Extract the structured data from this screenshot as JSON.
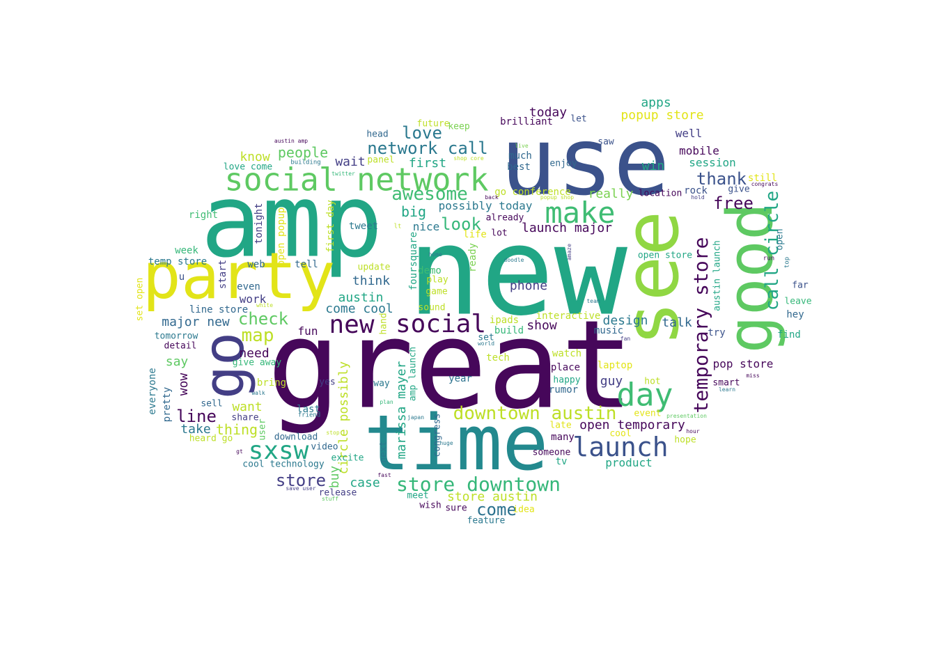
{
  "words": [
    {
      "text": "great",
      "color": "#46075a"
    },
    {
      "text": "new",
      "color": "#21a685"
    },
    {
      "text": "amp",
      "color": "#21a685"
    },
    {
      "text": "use",
      "color": "#3b528b"
    },
    {
      "text": "see",
      "color": "#90d743"
    },
    {
      "text": "time",
      "color": "#23898e"
    },
    {
      "text": "party",
      "color": "#e2e418"
    },
    {
      "text": "go",
      "color": "#433e85"
    },
    {
      "text": "good",
      "color": "#5ec962"
    },
    {
      "text": "social network",
      "color": "#5ec962"
    },
    {
      "text": "make",
      "color": "#3fbc73"
    },
    {
      "text": "launch",
      "color": "#3b528b"
    },
    {
      "text": "day",
      "color": "#3fbc73"
    },
    {
      "text": "new",
      "color": "#46075a"
    },
    {
      "text": "social",
      "color": "#46075a"
    },
    {
      "text": "sxsw",
      "color": "#21a685"
    },
    {
      "text": "store downtown",
      "color": "#35b779"
    },
    {
      "text": "temporary store",
      "color": "#46075a"
    },
    {
      "text": "downtown austin",
      "color": "#bddf26"
    },
    {
      "text": "call circle",
      "color": "#21a685"
    },
    {
      "text": "network call",
      "color": "#2a788e"
    },
    {
      "text": "awesome",
      "color": "#3fbc73"
    },
    {
      "text": "come",
      "color": "#2c728e"
    },
    {
      "text": "store",
      "color": "#433e85"
    },
    {
      "text": "line",
      "color": "#46075a"
    },
    {
      "text": "map",
      "color": "#bddf26"
    },
    {
      "text": "love",
      "color": "#2a788e"
    },
    {
      "text": "look",
      "color": "#35b779"
    },
    {
      "text": "check",
      "color": "#5ec962"
    },
    {
      "text": "thank",
      "color": "#3b528b"
    },
    {
      "text": "free",
      "color": "#46075a"
    },
    {
      "text": "popup store",
      "color": "#e2e418"
    },
    {
      "text": "apps",
      "color": "#21a685"
    },
    {
      "text": "today",
      "color": "#46075a"
    },
    {
      "text": "store austin",
      "color": "#bddf26"
    },
    {
      "text": "launch major",
      "color": "#46075a"
    },
    {
      "text": "open temporary",
      "color": "#46075a"
    },
    {
      "text": "marissa mayer",
      "color": "#21a685"
    },
    {
      "text": "possibly today",
      "color": "#2a788e"
    },
    {
      "text": "thing",
      "color": "#bddf26"
    },
    {
      "text": "people",
      "color": "#5ec962"
    },
    {
      "text": "first",
      "color": "#21a685"
    },
    {
      "text": "austin",
      "color": "#21a685"
    },
    {
      "text": "wait",
      "color": "#433e85"
    },
    {
      "text": "well",
      "color": "#433e85"
    },
    {
      "text": "mobile",
      "color": "#46075a"
    },
    {
      "text": "session",
      "color": "#21a685"
    },
    {
      "text": "win",
      "color": "#21a685"
    },
    {
      "text": "really",
      "color": "#7ad151"
    },
    {
      "text": "big",
      "color": "#21a685"
    },
    {
      "text": "know",
      "color": "#bddf26"
    },
    {
      "text": "circle possibly",
      "color": "#bddf26"
    },
    {
      "text": "pop store",
      "color": "#46075a"
    },
    {
      "text": "design",
      "color": "#2a788e"
    },
    {
      "text": "phone",
      "color": "#433e85"
    },
    {
      "text": "product",
      "color": "#21a685"
    },
    {
      "text": "major new",
      "color": "#31688e"
    },
    {
      "text": "come cool",
      "color": "#2a788e"
    },
    {
      "text": "want",
      "color": "#bddf26"
    },
    {
      "text": "need",
      "color": "#46075a"
    },
    {
      "text": "say",
      "color": "#5ec962"
    },
    {
      "text": "take",
      "color": "#2a788e"
    },
    {
      "text": "talk",
      "color": "#31688e"
    },
    {
      "text": "show",
      "color": "#46075a"
    },
    {
      "text": "case",
      "color": "#21a685"
    },
    {
      "text": "guy",
      "color": "#433e85"
    },
    {
      "text": "fun",
      "color": "#46075a"
    },
    {
      "text": "think",
      "color": "#31688e"
    },
    {
      "text": "work",
      "color": "#433e85"
    },
    {
      "text": "nice",
      "color": "#2a788e"
    },
    {
      "text": "wow",
      "color": "#46075a"
    },
    {
      "text": "buy",
      "color": "#5ec962"
    },
    {
      "text": "tweet",
      "color": "#2a788e"
    },
    {
      "text": "tonight",
      "color": "#433e85"
    },
    {
      "text": "first day",
      "color": "#bddf26"
    },
    {
      "text": "open popup",
      "color": "#e2e418"
    },
    {
      "text": "temp store",
      "color": "#2a788e"
    },
    {
      "text": "line store",
      "color": "#31688e"
    },
    {
      "text": "love come",
      "color": "#21a685"
    },
    {
      "text": "foursquare",
      "color": "#21a685"
    },
    {
      "text": "brilliant",
      "color": "#46075a"
    },
    {
      "text": "future",
      "color": "#bddf26"
    },
    {
      "text": "keep",
      "color": "#7ad151"
    },
    {
      "text": "head",
      "color": "#31688e"
    },
    {
      "text": "panel",
      "color": "#bddf26"
    },
    {
      "text": "much",
      "color": "#31688e"
    },
    {
      "text": "best",
      "color": "#31688e"
    },
    {
      "text": "enjoy",
      "color": "#31688e"
    },
    {
      "text": "saw",
      "color": "#3b528b"
    },
    {
      "text": "let",
      "color": "#3b528b"
    },
    {
      "text": "go conference",
      "color": "#bddf26"
    },
    {
      "text": "location",
      "color": "#46075a"
    },
    {
      "text": "rock",
      "color": "#3b528b"
    },
    {
      "text": "give",
      "color": "#3b528b"
    },
    {
      "text": "still",
      "color": "#e2e418"
    },
    {
      "text": "already",
      "color": "#46075a"
    },
    {
      "text": "lot",
      "color": "#46075a"
    },
    {
      "text": "life",
      "color": "#e2e418"
    },
    {
      "text": "ready",
      "color": "#7ad151"
    },
    {
      "text": "right",
      "color": "#3fbc73"
    },
    {
      "text": "week",
      "color": "#35b779"
    },
    {
      "text": "web",
      "color": "#31688e"
    },
    {
      "text": "tell",
      "color": "#31688e"
    },
    {
      "text": "start",
      "color": "#433e85"
    },
    {
      "text": "update",
      "color": "#bddf26"
    },
    {
      "text": "demo",
      "color": "#3fbc73"
    },
    {
      "text": "play",
      "color": "#bddf26"
    },
    {
      "text": "game",
      "color": "#bddf26"
    },
    {
      "text": "sound",
      "color": "#bddf26"
    },
    {
      "text": "even",
      "color": "#31688e"
    },
    {
      "text": "u",
      "color": "#3b528b"
    },
    {
      "text": "set open",
      "color": "#e2e418"
    },
    {
      "text": "open store",
      "color": "#21a685"
    },
    {
      "text": "austin launch",
      "color": "#21a685"
    },
    {
      "text": "open",
      "color": "#2a788e"
    },
    {
      "text": "rumor",
      "color": "#31688e"
    },
    {
      "text": "far",
      "color": "#3b528b"
    },
    {
      "text": "leave",
      "color": "#35b779"
    },
    {
      "text": "hey",
      "color": "#31688e"
    },
    {
      "text": "find",
      "color": "#21a685"
    },
    {
      "text": "try",
      "color": "#3b528b"
    },
    {
      "text": "interactive",
      "color": "#bddf26"
    },
    {
      "text": "ipads",
      "color": "#bddf26"
    },
    {
      "text": "build",
      "color": "#35b779"
    },
    {
      "text": "music",
      "color": "#31688e"
    },
    {
      "text": "watch",
      "color": "#bddf26"
    },
    {
      "text": "laptop",
      "color": "#e2e418"
    },
    {
      "text": "tech",
      "color": "#bddf26"
    },
    {
      "text": "set",
      "color": "#2a788e"
    },
    {
      "text": "place",
      "color": "#46075a"
    },
    {
      "text": "happy",
      "color": "#21a685"
    },
    {
      "text": "year",
      "color": "#2c728e"
    },
    {
      "text": "hot",
      "color": "#bddf26"
    },
    {
      "text": "smart",
      "color": "#46075a"
    },
    {
      "text": "event",
      "color": "#e2e418"
    },
    {
      "text": "cool",
      "color": "#e2e418"
    },
    {
      "text": "hope",
      "color": "#bddf26"
    },
    {
      "text": "late",
      "color": "#e2e418"
    },
    {
      "text": "many",
      "color": "#46075a"
    },
    {
      "text": "someone",
      "color": "#46075a"
    },
    {
      "text": "tv",
      "color": "#21a685"
    },
    {
      "text": "tomorrow",
      "color": "#2a788e"
    },
    {
      "text": "detail",
      "color": "#46075a"
    },
    {
      "text": "give away",
      "color": "#35b779"
    },
    {
      "text": "everyone",
      "color": "#2a788e"
    },
    {
      "text": "pretty",
      "color": "#31688e"
    },
    {
      "text": "bring",
      "color": "#bddf26"
    },
    {
      "text": "sell",
      "color": "#31688e"
    },
    {
      "text": "share",
      "color": "#433e85"
    },
    {
      "text": "user",
      "color": "#5ec962"
    },
    {
      "text": "heard go",
      "color": "#bddf26"
    },
    {
      "text": "download",
      "color": "#31688e"
    },
    {
      "text": "video",
      "color": "#31688e"
    },
    {
      "text": "excite",
      "color": "#21a685"
    },
    {
      "text": "cool technology",
      "color": "#2a788e"
    },
    {
      "text": "yes",
      "color": "#433e85"
    },
    {
      "text": "last",
      "color": "#2a788e"
    },
    {
      "text": "way",
      "color": "#2a788e"
    },
    {
      "text": "next",
      "color": "#2a788e"
    },
    {
      "text": "amp launch",
      "color": "#21a685"
    },
    {
      "text": "congress",
      "color": "#31688e"
    },
    {
      "text": "hand",
      "color": "#bddf26"
    },
    {
      "text": "release",
      "color": "#433e85"
    },
    {
      "text": "meet",
      "color": "#21a685"
    },
    {
      "text": "wish",
      "color": "#46075a"
    },
    {
      "text": "sure",
      "color": "#46075a"
    },
    {
      "text": "idea",
      "color": "#e2e418"
    },
    {
      "text": "feature",
      "color": "#2a788e"
    },
    {
      "text": "austin amp",
      "color": "#46075a"
    },
    {
      "text": "building",
      "color": "#2a788e"
    },
    {
      "text": "twitter",
      "color": "#35b779"
    },
    {
      "text": "live",
      "color": "#7ad151"
    },
    {
      "text": "shop core",
      "color": "#bddf26"
    },
    {
      "text": "back",
      "color": "#46075a"
    },
    {
      "text": "popup shop",
      "color": "#bddf26"
    },
    {
      "text": "lt",
      "color": "#bddf26"
    },
    {
      "text": "home",
      "color": "#2a788e"
    },
    {
      "text": "doodle",
      "color": "#2a788e"
    },
    {
      "text": "amaze",
      "color": "#433e85"
    },
    {
      "text": "run",
      "color": "#46075a"
    },
    {
      "text": "top",
      "color": "#2a788e"
    },
    {
      "text": "hold",
      "color": "#433e85"
    },
    {
      "text": "congrats",
      "color": "#46075a"
    },
    {
      "text": "white",
      "color": "#bddf26"
    },
    {
      "text": "team",
      "color": "#2a788e"
    },
    {
      "text": "fan",
      "color": "#433e85"
    },
    {
      "text": "miss",
      "color": "#46075a"
    },
    {
      "text": "learn",
      "color": "#2a788e"
    },
    {
      "text": "world",
      "color": "#2a788e"
    },
    {
      "text": "walk",
      "color": "#2a788e"
    },
    {
      "text": "plan",
      "color": "#35b779"
    },
    {
      "text": "friend",
      "color": "#2a788e"
    },
    {
      "text": "japan",
      "color": "#2a788e"
    },
    {
      "text": "stop",
      "color": "#bddf26"
    },
    {
      "text": "huge",
      "color": "#2a788e"
    },
    {
      "text": "gt",
      "color": "#46075a"
    },
    {
      "text": "fast",
      "color": "#46075a"
    },
    {
      "text": "save user",
      "color": "#433e85"
    },
    {
      "text": "stuff",
      "color": "#5ec962"
    },
    {
      "text": "presentation",
      "color": "#5ec962"
    },
    {
      "text": "hour",
      "color": "#46075a"
    }
  ]
}
